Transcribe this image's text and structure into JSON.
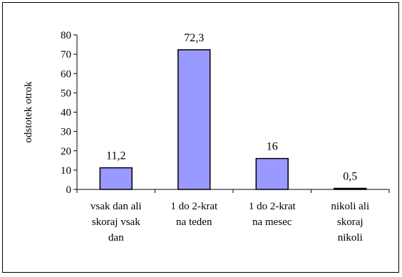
{
  "chart_data": {
    "type": "bar",
    "title": "",
    "xlabel": "",
    "ylabel": "odstotek otrok",
    "ylim": [
      0,
      80
    ],
    "yticks": [
      0,
      10,
      20,
      30,
      40,
      50,
      60,
      70,
      80
    ],
    "grid": false,
    "legend": "none",
    "categories": [
      [
        "vsak dan ali",
        "skoraj vsak",
        "dan"
      ],
      [
        "1 do 2-krat",
        "na teden"
      ],
      [
        "1 do 2-krat",
        "na mesec"
      ],
      [
        "nikoli ali",
        "skoraj",
        "nikoli"
      ]
    ],
    "values": [
      11.2,
      72.3,
      16,
      0.5
    ],
    "data_labels": [
      "11,2",
      "72,3",
      "16",
      "0,5"
    ],
    "colors": {
      "bar_fill": "#9999FF",
      "bar_stroke": "#000000"
    }
  }
}
